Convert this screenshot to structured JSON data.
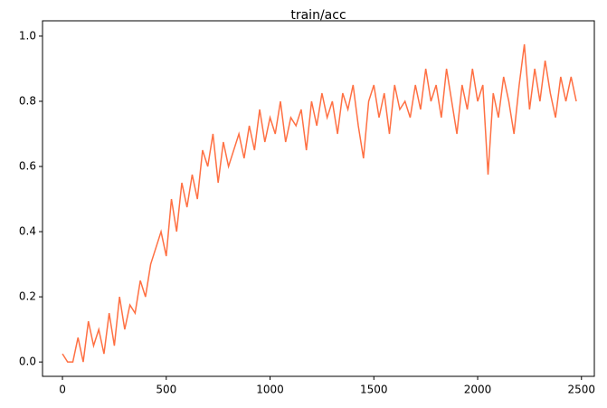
{
  "chart_data": {
    "type": "line",
    "title": "train/acc",
    "x": [
      0,
      25,
      50,
      75,
      100,
      125,
      150,
      175,
      200,
      225,
      250,
      275,
      300,
      325,
      350,
      375,
      400,
      425,
      450,
      475,
      500,
      525,
      550,
      575,
      600,
      625,
      650,
      675,
      700,
      725,
      750,
      775,
      800,
      825,
      850,
      875,
      900,
      925,
      950,
      975,
      1000,
      1025,
      1050,
      1075,
      1100,
      1125,
      1150,
      1175,
      1200,
      1225,
      1250,
      1275,
      1300,
      1325,
      1350,
      1375,
      1400,
      1425,
      1450,
      1475,
      1500,
      1525,
      1550,
      1575,
      1600,
      1625,
      1650,
      1675,
      1700,
      1725,
      1750,
      1775,
      1800,
      1825,
      1850,
      1875,
      1900,
      1925,
      1950,
      1975,
      2000,
      2025,
      2050,
      2075,
      2100,
      2125,
      2150,
      2175,
      2200,
      2225,
      2250,
      2275,
      2300,
      2325,
      2350,
      2375,
      2400,
      2425,
      2450,
      2475
    ],
    "series": [
      {
        "color": "#ff7043",
        "values": [
          0.025,
          0,
          0,
          0.075,
          0,
          0.125,
          0.05,
          0.1,
          0.025,
          0.15,
          0.05,
          0.2,
          0.1,
          0.175,
          0.15,
          0.25,
          0.2,
          0.3,
          0.35,
          0.4,
          0.325,
          0.5,
          0.4,
          0.55,
          0.475,
          0.575,
          0.5,
          0.65,
          0.6,
          0.7,
          0.55,
          0.675,
          0.6,
          0.65,
          0.7,
          0.625,
          0.725,
          0.65,
          0.775,
          0.675,
          0.75,
          0.7,
          0.8,
          0.675,
          0.75,
          0.725,
          0.775,
          0.65,
          0.8,
          0.725,
          0.825,
          0.75,
          0.8,
          0.7,
          0.825,
          0.775,
          0.85,
          0.725,
          0.625,
          0.8,
          0.85,
          0.75,
          0.825,
          0.7,
          0.85,
          0.775,
          0.8,
          0.75,
          0.85,
          0.775,
          0.9,
          0.8,
          0.85,
          0.75,
          0.9,
          0.8,
          0.7,
          0.85,
          0.775,
          0.9,
          0.8,
          0.85,
          0.575,
          0.825,
          0.75,
          0.875,
          0.8,
          0.7,
          0.85,
          0.975,
          0.775,
          0.9,
          0.8,
          0.925,
          0.825,
          0.75,
          0.875,
          0.8,
          0.875,
          0.8
        ]
      }
    ],
    "xlim": [
      -96,
      2562
    ],
    "xticks": [
      0,
      500,
      1000,
      1500,
      2000,
      2500
    ],
    "ylim": [
      -0.044,
      1.047
    ],
    "yticks": [
      {
        "value": 0,
        "label": "0.0"
      },
      {
        "value": 0.2,
        "label": "0.2"
      },
      {
        "value": 0.4,
        "label": "0.4"
      },
      {
        "value": 0.6,
        "label": "0.6"
      },
      {
        "value": 0.8,
        "label": "0.8"
      },
      {
        "value": 1,
        "label": "1.0"
      }
    ]
  }
}
